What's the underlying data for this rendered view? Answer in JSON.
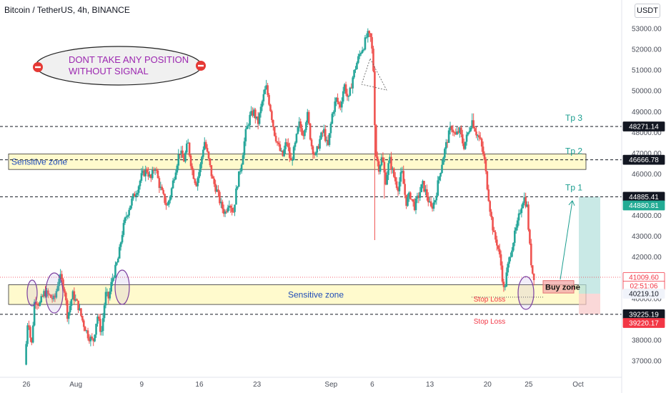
{
  "header": {
    "title": "Bitcoin / TetherUS, 4h, BINANCE",
    "currency": "USDT"
  },
  "annotations": {
    "warning_line1": "DONT TAKE ANY POSITION",
    "warning_line2": "WITHOUT SIGNAL",
    "sensitive_zone_top": "Sensitive zone",
    "sensitive_zone_bottom": "Sensitive zone",
    "tp1": "Tp 1",
    "tp2": "Tp 2",
    "tp3": "Tp 3",
    "buy_zone": "Buy zone",
    "stop_loss_1": "Stop Loss",
    "stop_loss_2": "Stop Loss"
  },
  "price_tags": [
    {
      "text": "48271.14",
      "price": 48271.14,
      "bg": "#131722",
      "fg": "#ffffff"
    },
    {
      "text": "46666.78",
      "price": 46666.78,
      "bg": "#131722",
      "fg": "#ffffff"
    },
    {
      "text": "44885.41",
      "price": 44885.41,
      "bg": "#131722",
      "fg": "#ffffff"
    },
    {
      "text": "44880.81",
      "price": 44880.81,
      "bg": "#22ab94",
      "fg": "#ffffff",
      "offset": 1
    },
    {
      "text": "41009.60",
      "price": 41009.6,
      "bg": "#ffffff",
      "fg": "#f23645",
      "border": "#f23645"
    },
    {
      "text": "02:51:06",
      "price": 41009.6,
      "bg": "#ffffff",
      "fg": "#f23645",
      "border": "#f23645",
      "offset": 1
    },
    {
      "text": "40219.10",
      "price": 40219.1,
      "bg": "#f0f3fa",
      "fg": "#131722"
    },
    {
      "text": "39225.19",
      "price": 39225.19,
      "bg": "#131722",
      "fg": "#ffffff"
    },
    {
      "text": "39220.17",
      "price": 39220.17,
      "bg": "#f23645",
      "fg": "#ffffff",
      "offset": 1
    }
  ],
  "colors": {
    "up": "#26a69a",
    "down": "#ef5350",
    "zone_fill": "#fff9c4",
    "zone_border": "#333333",
    "target": "#b2dfdb",
    "stop": "#f8c7c7",
    "buy_fill": "#f2a7a7",
    "ellipse": "#7b3fa0",
    "warning_text": "#9c27b0",
    "tp_text": "#1a9d8f",
    "stop_text": "#f23645",
    "zone_text": "#1e4bb8"
  },
  "chart_data": {
    "type": "candlestick",
    "symbol": "Bitcoin / TetherUS",
    "interval": "4h",
    "exchange": "BINANCE",
    "ylim": [
      36400,
      53500
    ],
    "y_ticks": [
      37000,
      38000,
      39000,
      40000,
      41000,
      42000,
      43000,
      44000,
      45000,
      46000,
      47000,
      48000,
      49000,
      50000,
      51000,
      52000,
      53000
    ],
    "y_tick_labels": [
      "37000.00",
      "38000.00",
      "39000.00",
      "40000.00",
      "41000.00",
      "42000.00",
      "43000.00",
      "44000.00",
      "45000.00",
      "46000.00",
      "47000.00",
      "48000.00",
      "49000.00",
      "50000.00",
      "51000.00",
      "52000.00",
      "53000.00"
    ],
    "x_ticks": [
      {
        "day": 0,
        "label": "26"
      },
      {
        "day": 6,
        "label": "Aug"
      },
      {
        "day": 14,
        "label": "9"
      },
      {
        "day": 21,
        "label": "16"
      },
      {
        "day": 28,
        "label": "23"
      },
      {
        "day": 37,
        "label": "Sep"
      },
      {
        "day": 42,
        "label": "6"
      },
      {
        "day": 49,
        "label": "13"
      },
      {
        "day": 56,
        "label": "20"
      },
      {
        "day": 61,
        "label": "25"
      },
      {
        "day": 67,
        "label": "Oct"
      }
    ],
    "price_path": [
      [
        -0.2,
        36800
      ],
      [
        0.2,
        39200
      ],
      [
        0.6,
        37600
      ],
      [
        1.0,
        40000
      ],
      [
        1.6,
        39700
      ],
      [
        2.2,
        40300
      ],
      [
        2.8,
        40100
      ],
      [
        3.4,
        39900
      ],
      [
        4.0,
        41100
      ],
      [
        4.6,
        40500
      ],
      [
        5.0,
        39100
      ],
      [
        5.6,
        40200
      ],
      [
        6.3,
        39600
      ],
      [
        6.9,
        38800
      ],
      [
        7.5,
        38200
      ],
      [
        8.1,
        37900
      ],
      [
        8.6,
        39200
      ],
      [
        9.1,
        38300
      ],
      [
        9.6,
        40200
      ],
      [
        10.0,
        40000
      ],
      [
        10.4,
        40900
      ],
      [
        10.8,
        41400
      ],
      [
        11.2,
        42000
      ],
      [
        11.6,
        43100
      ],
      [
        12.0,
        43800
      ],
      [
        12.5,
        44400
      ],
      [
        13.0,
        44900
      ],
      [
        13.5,
        45300
      ],
      [
        14.0,
        45900
      ],
      [
        14.6,
        46200
      ],
      [
        15.1,
        45700
      ],
      [
        15.6,
        46400
      ],
      [
        16.1,
        45500
      ],
      [
        16.6,
        44900
      ],
      [
        17.1,
        44400
      ],
      [
        17.6,
        45200
      ],
      [
        18.1,
        46200
      ],
      [
        18.6,
        47100
      ],
      [
        19.1,
        46600
      ],
      [
        19.6,
        47500
      ],
      [
        20.1,
        46200
      ],
      [
        20.6,
        45500
      ],
      [
        21.1,
        46300
      ],
      [
        21.6,
        47600
      ],
      [
        22.1,
        46700
      ],
      [
        22.6,
        45700
      ],
      [
        23.1,
        45200
      ],
      [
        23.6,
        44500
      ],
      [
        24.1,
        44100
      ],
      [
        24.6,
        44700
      ],
      [
        25.1,
        44100
      ],
      [
        25.6,
        45500
      ],
      [
        26.1,
        46500
      ],
      [
        26.6,
        47900
      ],
      [
        27.1,
        48700
      ],
      [
        27.6,
        49000
      ],
      [
        28.1,
        48400
      ],
      [
        28.6,
        49400
      ],
      [
        29.1,
        50200
      ],
      [
        29.6,
        49200
      ],
      [
        30.1,
        48000
      ],
      [
        30.6,
        47300
      ],
      [
        31.1,
        46800
      ],
      [
        31.6,
        47600
      ],
      [
        32.1,
        46500
      ],
      [
        32.6,
        47300
      ],
      [
        33.1,
        48400
      ],
      [
        33.6,
        47900
      ],
      [
        34.1,
        48900
      ],
      [
        34.6,
        47400
      ],
      [
        35.1,
        46800
      ],
      [
        35.6,
        47600
      ],
      [
        36.1,
        48100
      ],
      [
        36.6,
        47200
      ],
      [
        37.1,
        48800
      ],
      [
        37.6,
        49600
      ],
      [
        38.1,
        49200
      ],
      [
        38.6,
        50300
      ],
      [
        39.1,
        49500
      ],
      [
        39.6,
        50600
      ],
      [
        40.1,
        51300
      ],
      [
        40.6,
        51900
      ],
      [
        41.0,
        52200
      ],
      [
        41.4,
        52700
      ],
      [
        41.8,
        52500
      ],
      [
        42.1,
        51500
      ],
      [
        42.4,
        47000
      ],
      [
        42.8,
        46300
      ],
      [
        43.2,
        46800
      ],
      [
        43.6,
        45600
      ],
      [
        44.1,
        46700
      ],
      [
        44.6,
        45900
      ],
      [
        45.1,
        45300
      ],
      [
        45.6,
        46100
      ],
      [
        46.1,
        44600
      ],
      [
        46.6,
        45000
      ],
      [
        47.1,
        44400
      ],
      [
        47.6,
        44900
      ],
      [
        48.1,
        45500
      ],
      [
        48.6,
        45000
      ],
      [
        49.1,
        44300
      ],
      [
        49.6,
        44700
      ],
      [
        50.1,
        45800
      ],
      [
        50.6,
        46800
      ],
      [
        51.1,
        47600
      ],
      [
        51.6,
        48300
      ],
      [
        52.1,
        47800
      ],
      [
        52.6,
        48100
      ],
      [
        53.1,
        47300
      ],
      [
        53.6,
        47900
      ],
      [
        54.1,
        48600
      ],
      [
        54.6,
        48000
      ],
      [
        55.1,
        47600
      ],
      [
        55.6,
        46700
      ],
      [
        56.0,
        45300
      ],
      [
        56.4,
        44000
      ],
      [
        56.8,
        43000
      ],
      [
        57.2,
        42600
      ],
      [
        57.6,
        41700
      ],
      [
        58.0,
        40300
      ],
      [
        58.4,
        41400
      ],
      [
        58.8,
        42200
      ],
      [
        59.2,
        42900
      ],
      [
        59.6,
        43500
      ],
      [
        60.0,
        44300
      ],
      [
        60.4,
        44900
      ],
      [
        60.8,
        44400
      ],
      [
        61.1,
        42600
      ],
      [
        61.4,
        41300
      ],
      [
        61.7,
        41000
      ]
    ],
    "horizontal_levels": [
      {
        "label": "Tp 3",
        "price": 48271.14
      },
      {
        "label": "Tp 2",
        "price": 46666.78
      },
      {
        "label": "Tp 1",
        "price": 44885.41
      },
      {
        "label": "Stop Loss",
        "price": 39225.19
      }
    ],
    "zones": [
      {
        "label": "Sensitive zone",
        "from": 46200,
        "to": 46950
      },
      {
        "label": "Sensitive zone",
        "from": 39700,
        "to": 40650
      },
      {
        "label": "Buy zone",
        "from": 40250,
        "to": 40850
      }
    ]
  }
}
